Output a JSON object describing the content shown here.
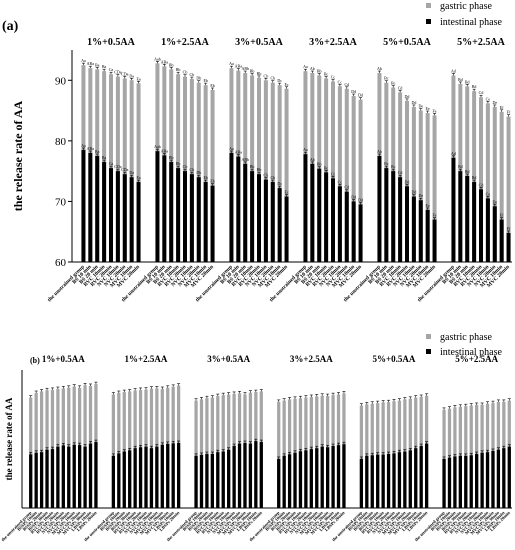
{
  "legend": {
    "gastric": "gastric phase",
    "intestinal": "intestinal phase",
    "gastric_color": "#a6a6a6",
    "intestinal_color": "#000000"
  },
  "chart_data": [
    {
      "type": "bar",
      "stacked": true,
      "panel": "(a)",
      "ylabel": "the release rate of AA",
      "ylim": [
        60,
        95
      ],
      "yticks": [
        60,
        70,
        80,
        90
      ],
      "legend_position": "top-right",
      "grid": false,
      "categories": [
        "the unstrained group",
        "BS 10 min",
        "BS 20 min",
        "RVC 10min",
        "RVC 20min",
        "NVC 10min",
        "NVC 20min",
        "MVC 10min",
        "MVC 20min"
      ],
      "groups": [
        {
          "name": "1%+0.5AA",
          "gastric": [
            92.5,
            92.0,
            91.8,
            91.5,
            91.0,
            90.6,
            90.3,
            90.0,
            89.5
          ],
          "intestinal": [
            78.5,
            78.0,
            77.5,
            76.5,
            75.5,
            75.0,
            74.5,
            74.0,
            73.2
          ],
          "letters": [
            "Aa",
            "ABa",
            "Ba",
            "Ba",
            "Ca",
            "CDa",
            "CDa",
            "Da",
            "Ea"
          ]
        },
        {
          "name": "1%+2.5AA",
          "gastric": [
            92.8,
            92.3,
            91.8,
            91.0,
            90.6,
            90.2,
            89.6,
            89.2,
            88.4
          ],
          "intestinal": [
            78.3,
            77.6,
            76.5,
            75.5,
            75.0,
            74.5,
            74.0,
            73.2,
            72.6
          ],
          "letters": [
            "Aab",
            "ABa",
            "Bb",
            "Bb",
            "Cb",
            "Cb",
            "Db",
            "Eb",
            "Eb"
          ]
        },
        {
          "name": "3%+0.5AA",
          "gastric": [
            92.0,
            91.6,
            91.2,
            90.8,
            90.4,
            90.0,
            89.6,
            89.2,
            88.6
          ],
          "intestinal": [
            78.0,
            77.4,
            76.2,
            75.0,
            74.5,
            73.6,
            73.2,
            72.2,
            70.8
          ],
          "letters": [
            "Aa",
            "ABa",
            "ABb",
            "Bb",
            "Bb",
            "Cb",
            "Cb",
            "Dc",
            "Ec"
          ]
        },
        {
          "name": "3%+2.5AA",
          "gastric": [
            91.5,
            91.2,
            90.8,
            90.3,
            89.8,
            89.0,
            88.6,
            87.4,
            86.8
          ],
          "intestinal": [
            77.8,
            76.2,
            75.4,
            74.8,
            73.8,
            72.5,
            71.6,
            70.0,
            69.5
          ],
          "letters": [
            "Aa",
            "Ab",
            "Bb",
            "Bc",
            "Cc",
            "Cc",
            "Cd",
            "Dd",
            "Dd"
          ]
        },
        {
          "name": "5%+0.5AA",
          "gastric": [
            91.2,
            89.6,
            88.8,
            88.0,
            86.6,
            85.6,
            85.0,
            84.6,
            84.2
          ],
          "intestinal": [
            77.5,
            75.5,
            75.0,
            74.0,
            72.5,
            70.8,
            70.2,
            68.6,
            67.0
          ],
          "letters": [
            "Ab",
            "Bc",
            "Bc",
            "Cd",
            "Dd",
            "Dd",
            "De",
            "Ee",
            "Fe"
          ]
        },
        {
          "name": "5%+2.5AA",
          "gastric": [
            90.8,
            89.4,
            89.0,
            88.2,
            87.2,
            86.2,
            85.6,
            84.8,
            84.0
          ],
          "intestinal": [
            77.2,
            75.0,
            74.2,
            73.2,
            72.0,
            70.5,
            69.2,
            67.0,
            64.8
          ],
          "letters": [
            "Ad",
            "Bd",
            "Bd",
            "Bd",
            "Cd",
            "Ce",
            "De",
            "Ef",
            "Ff"
          ]
        }
      ]
    },
    {
      "type": "bar",
      "stacked": true,
      "panel": "(b)",
      "ylabel": "the release rate of AA",
      "ylim": [
        55,
        100
      ],
      "legend_position": "top-right",
      "grid": false,
      "categories": [
        "the unstrained group",
        "BSSPs 10min",
        "BSSPs 20min",
        "BSSPs 30min",
        "RVCSPs 10min",
        "RVCSPs 20min",
        "NVCSPs 10min",
        "NVCSPs 20min",
        "MVCSPs 10min",
        "MVCSPs 20min",
        "MVCSPs 30min",
        "LBSPs 10min",
        "LBSPs 20min"
      ],
      "groups": [
        {
          "name": "1%+0.5AA",
          "gastric": [
            91.0,
            92.5,
            93.0,
            93.4,
            93.5,
            93.8,
            94.0,
            94.2,
            94.6,
            94.2,
            95.0,
            94.8,
            95.4
          ],
          "intestinal": [
            72.5,
            73.0,
            73.2,
            74.0,
            74.2,
            75.0,
            75.4,
            75.0,
            75.6,
            75.5,
            75.0,
            76.0,
            76.5
          ]
        },
        {
          "name": "1%+2.5AA",
          "gastric": [
            92.0,
            92.5,
            92.8,
            93.0,
            93.3,
            93.5,
            93.6,
            93.9,
            94.0,
            93.8,
            94.2,
            94.5,
            94.9
          ],
          "intestinal": [
            72.0,
            72.8,
            73.4,
            73.8,
            74.5,
            74.8,
            75.0,
            74.5,
            75.0,
            75.6,
            75.9,
            76.1,
            76.2
          ]
        },
        {
          "name": "3%+0.5AA",
          "gastric": [
            90.0,
            90.4,
            90.8,
            91.0,
            91.5,
            91.8,
            92.0,
            92.2,
            92.4,
            92.0,
            92.6,
            92.8,
            93.0
          ],
          "intestinal": [
            72.0,
            72.3,
            72.6,
            72.6,
            73.2,
            73.4,
            74.0,
            75.2,
            76.0,
            76.2,
            76.0,
            76.8,
            76.5
          ]
        },
        {
          "name": "3%+2.5AA",
          "gastric": [
            89.6,
            90.0,
            90.4,
            90.6,
            90.8,
            91.0,
            91.2,
            91.4,
            91.6,
            91.5,
            91.8,
            92.0,
            92.4
          ],
          "intestinal": [
            71.0,
            72.0,
            72.5,
            73.0,
            73.5,
            73.8,
            74.2,
            74.5,
            75.0,
            74.8,
            75.2,
            75.5,
            75.8
          ]
        },
        {
          "name": "5%+0.5AA",
          "gastric": [
            88.4,
            88.8,
            89.0,
            89.2,
            89.4,
            89.5,
            89.8,
            90.0,
            90.4,
            90.6,
            91.0,
            91.2,
            91.6
          ],
          "intestinal": [
            71.0,
            72.0,
            72.2,
            72.4,
            72.4,
            72.6,
            72.8,
            73.2,
            73.4,
            73.8,
            74.5,
            75.2,
            76.0
          ]
        },
        {
          "name": "5%+2.5AA",
          "gastric": [
            87.0,
            87.4,
            87.8,
            88.0,
            88.2,
            88.4,
            88.6,
            88.6,
            89.0,
            89.2,
            89.6,
            89.6,
            90.0
          ],
          "intestinal": [
            71.0,
            71.4,
            71.8,
            72.0,
            72.0,
            72.2,
            72.6,
            73.0,
            73.2,
            73.6,
            74.0,
            74.5,
            75.0
          ]
        }
      ]
    }
  ]
}
